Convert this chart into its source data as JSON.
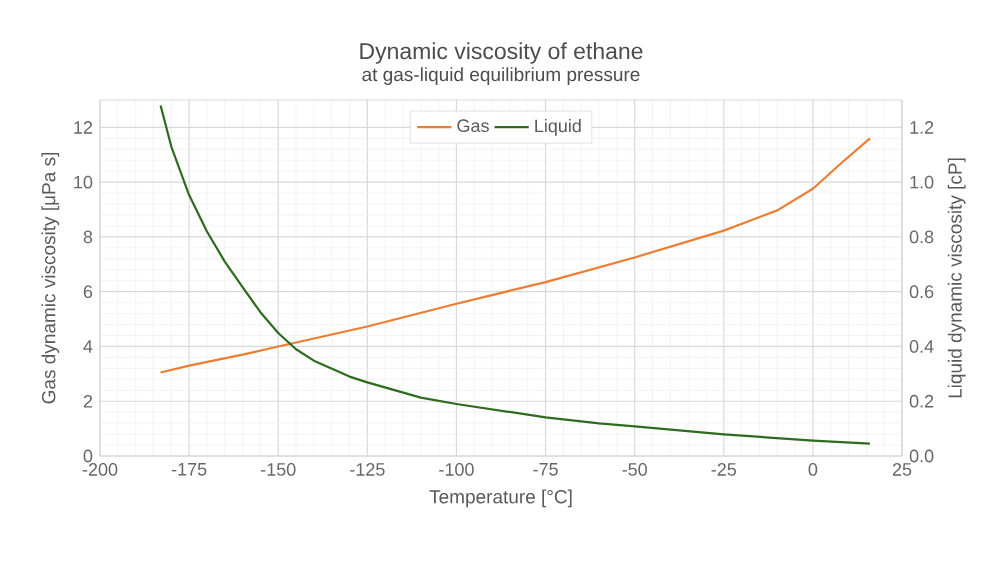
{
  "chart_data": {
    "type": "line",
    "title": "Dynamic viscosity of ethane",
    "subtitle": "at gas-liquid equilibrium pressure",
    "xlabel": "Temperature  [°C]",
    "ylabel": "Gas dynamic viscosity [μPa s]",
    "y2label": "Liquid dynamic viscosity [cP]",
    "xlim": [
      -200,
      25
    ],
    "xticks": [
      -200,
      -175,
      -150,
      -125,
      -100,
      -75,
      -50,
      -25,
      0,
      25
    ],
    "ylim": [
      0,
      13
    ],
    "yticks": [
      0,
      2,
      4,
      6,
      8,
      10,
      12
    ],
    "y2lim": [
      0,
      1.3
    ],
    "y2ticks": [
      {
        "value": 0,
        "label": "0.0"
      },
      0.2,
      0.4,
      0.6,
      0.8,
      {
        "value": 1,
        "label": "1.0"
      },
      1.2
    ],
    "grid": true,
    "legend": "top",
    "line_style": "solid",
    "series": [
      {
        "name": "Gas",
        "color": "#ed7d31",
        "x": [
          -183,
          -175,
          -160,
          -150,
          -125,
          -100,
          -75,
          -50,
          -25,
          -10,
          0,
          8,
          16
        ],
        "values": [
          3.05,
          3.3,
          3.7,
          4.0,
          4.73,
          5.56,
          6.35,
          7.25,
          8.23,
          8.97,
          9.76,
          10.7,
          11.6
        ]
      },
      {
        "name": "Liquid",
        "color": "#2e6b1e",
        "axis": "y2",
        "x": [
          -183,
          -180,
          -175,
          -170,
          -165,
          -160,
          -155,
          -150,
          -145,
          -140,
          -130,
          -125,
          -110,
          -100,
          -75,
          -60,
          -50,
          -25,
          0,
          16
        ],
        "values": [
          1.28,
          1.13,
          0.953,
          0.82,
          0.71,
          0.617,
          0.525,
          0.449,
          0.39,
          0.348,
          0.29,
          0.269,
          0.213,
          0.19,
          0.141,
          0.119,
          0.108,
          0.079,
          0.056,
          0.045
        ]
      }
    ]
  }
}
